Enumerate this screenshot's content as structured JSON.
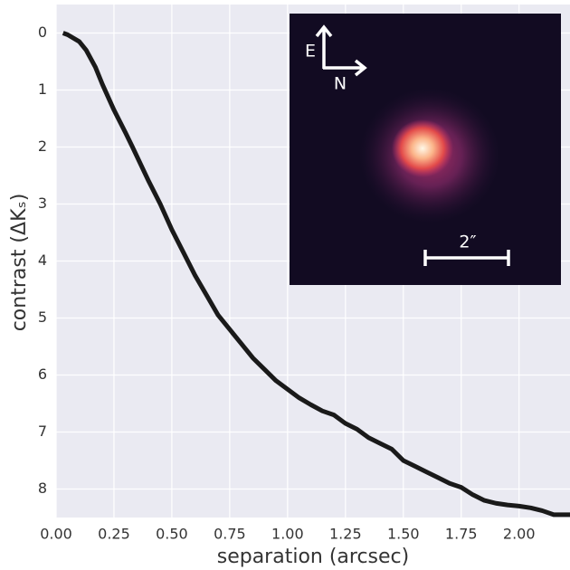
{
  "chart_data": {
    "type": "line",
    "xlabel": "separation (arcsec)",
    "ylabel": "contrast (ΔKₛ)",
    "x": [
      0.03,
      0.05,
      0.1,
      0.13,
      0.17,
      0.2,
      0.25,
      0.3,
      0.33,
      0.4,
      0.45,
      0.5,
      0.55,
      0.6,
      0.65,
      0.7,
      0.75,
      0.8,
      0.85,
      0.9,
      0.95,
      1.0,
      1.05,
      1.1,
      1.15,
      1.2,
      1.25,
      1.3,
      1.35,
      1.4,
      1.45,
      1.5,
      1.55,
      1.6,
      1.65,
      1.7,
      1.75,
      1.8,
      1.85,
      1.9,
      1.95,
      2.0,
      2.05,
      2.1,
      2.15,
      2.22
    ],
    "values": [
      0.0,
      0.03,
      0.15,
      0.3,
      0.6,
      0.9,
      1.35,
      1.75,
      2.0,
      2.6,
      3.0,
      3.45,
      3.85,
      4.25,
      4.6,
      4.95,
      5.2,
      5.45,
      5.7,
      5.9,
      6.1,
      6.25,
      6.4,
      6.52,
      6.63,
      6.7,
      6.85,
      6.95,
      7.1,
      7.2,
      7.3,
      7.5,
      7.6,
      7.7,
      7.8,
      7.9,
      7.97,
      8.1,
      8.2,
      8.25,
      8.28,
      8.3,
      8.33,
      8.38,
      8.45,
      8.45
    ],
    "color": "#1a1a1a",
    "xlim": [
      0,
      2.22
    ],
    "ylim": [
      8.5,
      -0.5
    ],
    "xticks": [
      {
        "value": 0,
        "label": "0.00"
      },
      0.25,
      {
        "value": 0.5,
        "label": "0.50"
      },
      0.75,
      {
        "value": 1,
        "label": "1.00"
      },
      1.25,
      {
        "value": 1.5,
        "label": "1.50"
      },
      1.75,
      {
        "value": 2,
        "label": "2.00"
      }
    ],
    "yticks": [
      0,
      1,
      2,
      3,
      4,
      5,
      6,
      7,
      8
    ],
    "grid": true,
    "inset_labels": {
      "east": "E",
      "north": "N",
      "scale": "2″"
    }
  }
}
